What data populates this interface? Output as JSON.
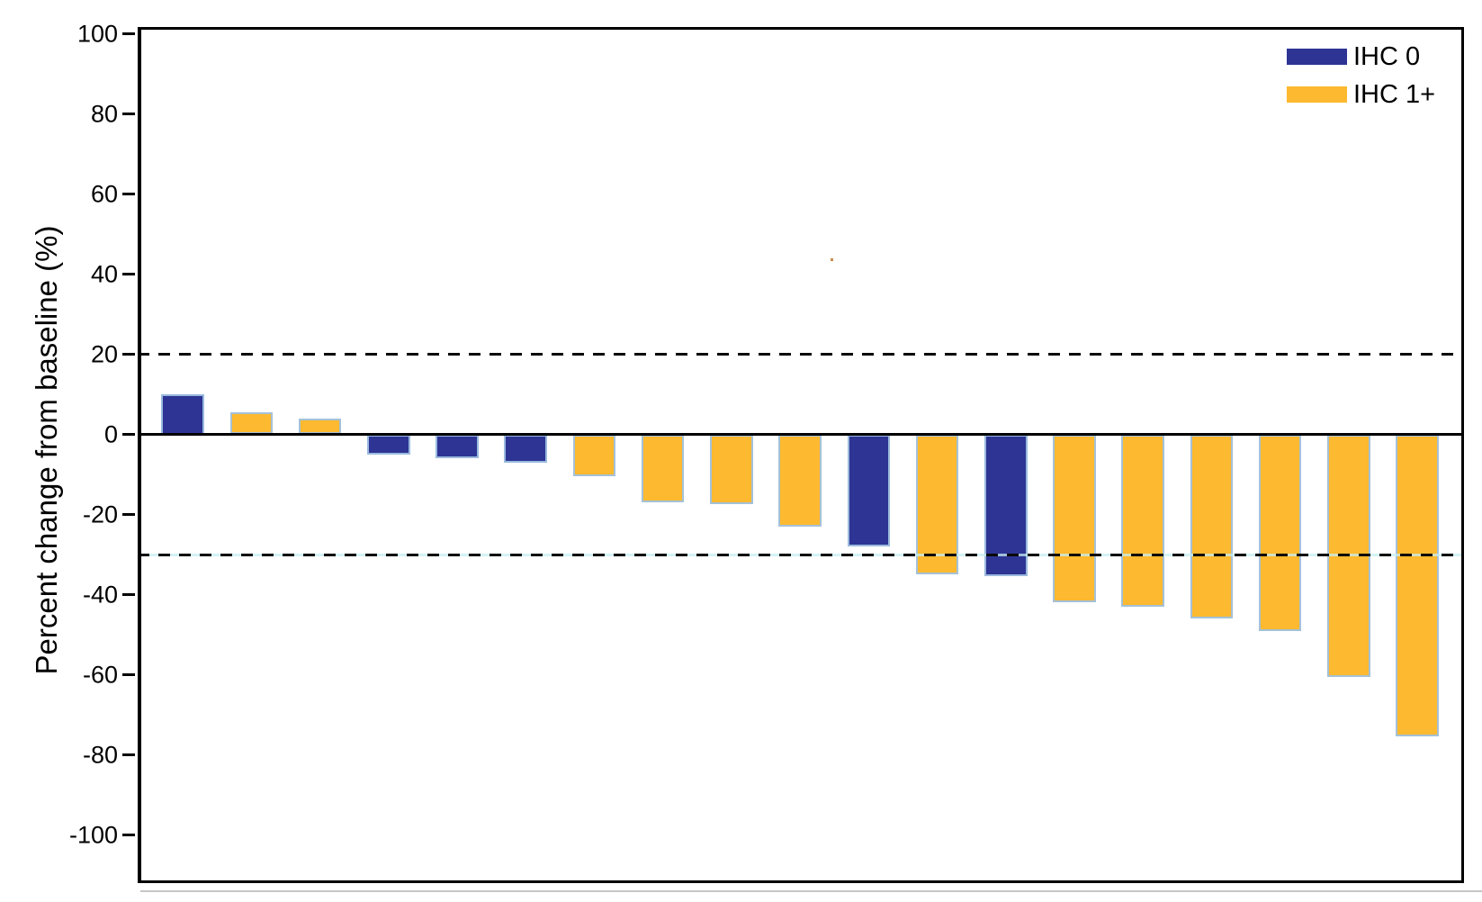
{
  "figure": {
    "background": "#ffffff",
    "frame_color": "#000000"
  },
  "y_axis": {
    "title": "Percent change from baseline (%)",
    "tick_values": [
      100,
      80,
      60,
      40,
      20,
      0,
      -20,
      -40,
      -60,
      -80,
      -100
    ],
    "tick_labels": [
      "100",
      "80",
      "60",
      "40",
      "20",
      "0",
      "-20",
      "-40",
      "-60",
      "-80",
      "-100"
    ]
  },
  "legend": {
    "items": [
      {
        "label": "IHC 0",
        "color": "#2d3494"
      },
      {
        "label": "IHC 1+",
        "color": "#fdb92f"
      }
    ]
  },
  "chart_data": {
    "type": "bar",
    "subtype": "waterfall",
    "title": "",
    "xlabel": "",
    "ylabel": "Percent change from baseline (%)",
    "ylim": [
      -111,
      101
    ],
    "grid": false,
    "legend_position": "top-right",
    "bar_outline_color": "#a0c1e0",
    "reference_lines": [
      {
        "value": 20,
        "style": "dashed",
        "color": "#000000"
      },
      {
        "value": -30,
        "style": "dashed",
        "color": "#000000"
      }
    ],
    "series_colors": {
      "IHC 0": "#2d3494",
      "IHC 1+": "#fdb92f"
    },
    "bars": [
      {
        "series": "IHC 0",
        "value": 10
      },
      {
        "series": "IHC 1+",
        "value": 5.5
      },
      {
        "series": "IHC 1+",
        "value": 4
      },
      {
        "series": "IHC 0",
        "value": -5
      },
      {
        "series": "IHC 0",
        "value": -6
      },
      {
        "series": "IHC 0",
        "value": -7
      },
      {
        "series": "IHC 1+",
        "value": -10.5
      },
      {
        "series": "IHC 1+",
        "value": -17
      },
      {
        "series": "IHC 1+",
        "value": -17.5
      },
      {
        "series": "IHC 1+",
        "value": -23
      },
      {
        "series": "IHC 0",
        "value": -28
      },
      {
        "series": "IHC 1+",
        "value": -35
      },
      {
        "series": "IHC 0",
        "value": -35.5
      },
      {
        "series": "IHC 1+",
        "value": -42
      },
      {
        "series": "IHC 1+",
        "value": -43
      },
      {
        "series": "IHC 1+",
        "value": -46
      },
      {
        "series": "IHC 1+",
        "value": -49
      },
      {
        "series": "IHC 1+",
        "value": -60.5
      },
      {
        "series": "IHC 1+",
        "value": -75.5
      }
    ]
  }
}
